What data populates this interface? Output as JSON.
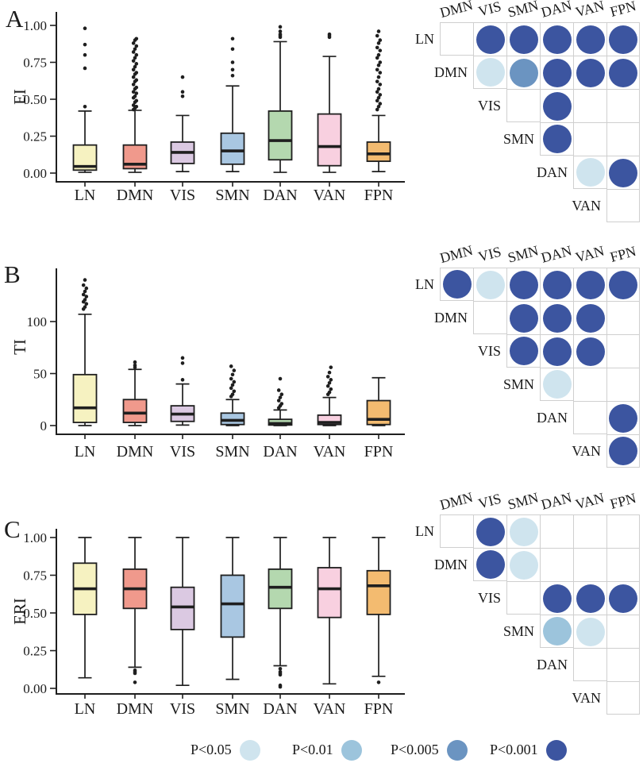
{
  "figure": {
    "networks": [
      "LN",
      "DMN",
      "VIS",
      "SMN",
      "DAN",
      "VAN",
      "FPN"
    ],
    "box_fill_colors": [
      "#f6f2c1",
      "#f0998c",
      "#dbc9e2",
      "#a9c7e2",
      "#b4d8af",
      "#f8d0e0",
      "#f3bb70"
    ],
    "box_stroke_color": "#1f1f1f",
    "grid_line_color": "#cfcfcf",
    "text_color": "#1c1c1c"
  },
  "legend": {
    "items": [
      {
        "label": "P<0.05",
        "color": "#cfe4ee"
      },
      {
        "label": "P<0.01",
        "color": "#9cc4dc"
      },
      {
        "label": "P<0.005",
        "color": "#6b94c1"
      },
      {
        "label": "P<0.001",
        "color": "#3c55a0"
      }
    ]
  },
  "chart_data": [
    {
      "type": "boxplot",
      "panel_label": "A",
      "ylabel": "EI",
      "xlabel": "",
      "categories": [
        "LN",
        "DMN",
        "VIS",
        "SMN",
        "DAN",
        "VAN",
        "FPN"
      ],
      "ylim": [
        0,
        1.09
      ],
      "yticks": [
        {
          "value": 0,
          "label": "0.00"
        },
        {
          "value": 0.25,
          "label": "0.25"
        },
        {
          "value": 0.5,
          "label": "0.50"
        },
        {
          "value": 0.75,
          "label": "0.75"
        },
        {
          "value": 1,
          "label": "1.00"
        }
      ],
      "boxes": [
        {
          "category": "LN",
          "whisker_low": 0.005,
          "q1": 0.02,
          "median": 0.045,
          "q3": 0.19,
          "whisker_high": 0.42,
          "outliers": [
            0.45,
            0.71,
            0.8,
            0.87,
            0.98
          ]
        },
        {
          "category": "DMN",
          "whisker_low": 0.005,
          "q1": 0.03,
          "median": 0.06,
          "q3": 0.19,
          "whisker_high": 0.425,
          "outliers": [
            0.43,
            0.44,
            0.45,
            0.46,
            0.48,
            0.49,
            0.51,
            0.52,
            0.54,
            0.55,
            0.57,
            0.58,
            0.6,
            0.62,
            0.63,
            0.65,
            0.67,
            0.68,
            0.7,
            0.72,
            0.74,
            0.76,
            0.78,
            0.8,
            0.82,
            0.84,
            0.86,
            0.88,
            0.9,
            0.91
          ]
        },
        {
          "category": "VIS",
          "whisker_low": 0.01,
          "q1": 0.065,
          "median": 0.14,
          "q3": 0.21,
          "whisker_high": 0.39,
          "outliers": [
            0.52,
            0.55,
            0.65
          ]
        },
        {
          "category": "SMN",
          "whisker_low": 0.01,
          "q1": 0.06,
          "median": 0.15,
          "q3": 0.27,
          "whisker_high": 0.59,
          "outliers": [
            0.66,
            0.7,
            0.75,
            0.84,
            0.91
          ]
        },
        {
          "category": "DAN",
          "whisker_low": 0.005,
          "q1": 0.09,
          "median": 0.22,
          "q3": 0.42,
          "whisker_high": 0.89,
          "outliers": [
            0.92,
            0.93,
            0.94,
            0.96,
            0.99
          ]
        },
        {
          "category": "VAN",
          "whisker_low": 0.005,
          "q1": 0.05,
          "median": 0.18,
          "q3": 0.4,
          "whisker_high": 0.79,
          "outliers": [
            0.92,
            0.93,
            0.94
          ]
        },
        {
          "category": "FPN",
          "whisker_low": 0.01,
          "q1": 0.08,
          "median": 0.13,
          "q3": 0.21,
          "whisker_high": 0.39,
          "outliers": [
            0.43,
            0.45,
            0.47,
            0.49,
            0.51,
            0.53,
            0.55,
            0.57,
            0.6,
            0.62,
            0.65,
            0.68,
            0.7,
            0.73,
            0.75,
            0.78,
            0.8,
            0.83,
            0.85,
            0.88,
            0.9,
            0.93,
            0.96
          ]
        }
      ],
      "significance_matrix": {
        "columns": [
          "DMN",
          "VIS",
          "SMN",
          "DAN",
          "VAN",
          "FPN"
        ],
        "rows": [
          "LN",
          "DMN",
          "VIS",
          "SMN",
          "DAN",
          "VAN"
        ],
        "dots": [
          {
            "row": "LN",
            "col": "VIS",
            "p": "P<0.001"
          },
          {
            "row": "LN",
            "col": "SMN",
            "p": "P<0.001"
          },
          {
            "row": "LN",
            "col": "DAN",
            "p": "P<0.001"
          },
          {
            "row": "LN",
            "col": "VAN",
            "p": "P<0.001"
          },
          {
            "row": "LN",
            "col": "FPN",
            "p": "P<0.001"
          },
          {
            "row": "DMN",
            "col": "VIS",
            "p": "P<0.05"
          },
          {
            "row": "DMN",
            "col": "SMN",
            "p": "P<0.005"
          },
          {
            "row": "DMN",
            "col": "DAN",
            "p": "P<0.001"
          },
          {
            "row": "DMN",
            "col": "VAN",
            "p": "P<0.001"
          },
          {
            "row": "DMN",
            "col": "FPN",
            "p": "P<0.001"
          },
          {
            "row": "VIS",
            "col": "DAN",
            "p": "P<0.001"
          },
          {
            "row": "SMN",
            "col": "DAN",
            "p": "P<0.001"
          },
          {
            "row": "DAN",
            "col": "VAN",
            "p": "P<0.05"
          },
          {
            "row": "DAN",
            "col": "FPN",
            "p": "P<0.001"
          }
        ]
      }
    },
    {
      "type": "boxplot",
      "panel_label": "B",
      "ylabel": "TI",
      "xlabel": "",
      "categories": [
        "LN",
        "DMN",
        "VIS",
        "SMN",
        "DAN",
        "VAN",
        "FPN"
      ],
      "ylim": [
        0,
        151
      ],
      "yticks": [
        {
          "value": 0,
          "label": "0"
        },
        {
          "value": 50,
          "label": "50"
        },
        {
          "value": 100,
          "label": "100"
        }
      ],
      "boxes": [
        {
          "category": "LN",
          "whisker_low": 0,
          "q1": 3,
          "median": 17,
          "q3": 49,
          "whisker_high": 107,
          "outliers": [
            112,
            114,
            117,
            119,
            121,
            124,
            126,
            129,
            132,
            135,
            140
          ]
        },
        {
          "category": "DMN",
          "whisker_low": 0,
          "q1": 3,
          "median": 12,
          "q3": 25,
          "whisker_high": 54,
          "outliers": [
            56,
            58,
            61
          ]
        },
        {
          "category": "VIS",
          "whisker_low": 0.5,
          "q1": 4,
          "median": 11,
          "q3": 19,
          "whisker_high": 40,
          "outliers": [
            44,
            60,
            65
          ]
        },
        {
          "category": "SMN",
          "whisker_low": 0,
          "q1": 1,
          "median": 5,
          "q3": 12,
          "whisker_high": 25,
          "outliers": [
            28,
            30,
            33,
            36,
            39,
            42,
            45,
            49,
            53,
            57
          ]
        },
        {
          "category": "DAN",
          "whisker_low": 0,
          "q1": 0.5,
          "median": 2,
          "q3": 6,
          "whisker_high": 15,
          "outliers": [
            17,
            19,
            21,
            24,
            27,
            30,
            34,
            45
          ]
        },
        {
          "category": "VAN",
          "whisker_low": 0,
          "q1": 1,
          "median": 3,
          "q3": 10,
          "whisker_high": 27,
          "outliers": [
            30,
            32,
            35,
            38,
            41,
            44,
            47,
            51,
            56
          ]
        },
        {
          "category": "FPN",
          "whisker_low": 0,
          "q1": 1,
          "median": 6,
          "q3": 24,
          "whisker_high": 46,
          "outliers": []
        }
      ],
      "significance_matrix": {
        "columns": [
          "DMN",
          "VIS",
          "SMN",
          "DAN",
          "VAN",
          "FPN"
        ],
        "rows": [
          "LN",
          "DMN",
          "VIS",
          "SMN",
          "DAN",
          "VAN"
        ],
        "dots": [
          {
            "row": "LN",
            "col": "DMN",
            "p": "P<0.001"
          },
          {
            "row": "LN",
            "col": "VIS",
            "p": "P<0.05"
          },
          {
            "row": "LN",
            "col": "SMN",
            "p": "P<0.001"
          },
          {
            "row": "LN",
            "col": "DAN",
            "p": "P<0.001"
          },
          {
            "row": "LN",
            "col": "VAN",
            "p": "P<0.001"
          },
          {
            "row": "LN",
            "col": "FPN",
            "p": "P<0.001"
          },
          {
            "row": "DMN",
            "col": "SMN",
            "p": "P<0.001"
          },
          {
            "row": "DMN",
            "col": "DAN",
            "p": "P<0.001"
          },
          {
            "row": "DMN",
            "col": "VAN",
            "p": "P<0.001"
          },
          {
            "row": "VIS",
            "col": "SMN",
            "p": "P<0.001"
          },
          {
            "row": "VIS",
            "col": "DAN",
            "p": "P<0.001"
          },
          {
            "row": "VIS",
            "col": "VAN",
            "p": "P<0.001"
          },
          {
            "row": "SMN",
            "col": "DAN",
            "p": "P<0.05"
          },
          {
            "row": "DAN",
            "col": "FPN",
            "p": "P<0.001"
          },
          {
            "row": "VAN",
            "col": "FPN",
            "p": "P<0.001"
          }
        ]
      }
    },
    {
      "type": "boxplot",
      "panel_label": "C",
      "ylabel": "ERI",
      "xlabel": "",
      "categories": [
        "LN",
        "DMN",
        "VIS",
        "SMN",
        "DAN",
        "VAN",
        "FPN"
      ],
      "ylim": [
        0,
        1.09
      ],
      "yticks": [
        {
          "value": 0,
          "label": "0.00"
        },
        {
          "value": 0.25,
          "label": "0.25"
        },
        {
          "value": 0.5,
          "label": "0.50"
        },
        {
          "value": 0.75,
          "label": "0.75"
        },
        {
          "value": 1,
          "label": "1.00"
        }
      ],
      "boxes": [
        {
          "category": "LN",
          "whisker_low": 0.07,
          "q1": 0.49,
          "median": 0.66,
          "q3": 0.83,
          "whisker_high": 1,
          "outliers": []
        },
        {
          "category": "DMN",
          "whisker_low": 0.14,
          "q1": 0.53,
          "median": 0.66,
          "q3": 0.79,
          "whisker_high": 1,
          "outliers": [
            0.12,
            0.11,
            0.1,
            0.04
          ]
        },
        {
          "category": "VIS",
          "whisker_low": 0.02,
          "q1": 0.39,
          "median": 0.54,
          "q3": 0.67,
          "whisker_high": 1,
          "outliers": []
        },
        {
          "category": "SMN",
          "whisker_low": 0.06,
          "q1": 0.34,
          "median": 0.56,
          "q3": 0.75,
          "whisker_high": 1,
          "outliers": []
        },
        {
          "category": "DAN",
          "whisker_low": 0.15,
          "q1": 0.53,
          "median": 0.67,
          "q3": 0.79,
          "whisker_high": 1,
          "outliers": [
            0.13,
            0.11,
            0.1,
            0.09,
            0.02,
            0.01
          ]
        },
        {
          "category": "VAN",
          "whisker_low": 0.03,
          "q1": 0.47,
          "median": 0.66,
          "q3": 0.8,
          "whisker_high": 1,
          "outliers": []
        },
        {
          "category": "FPN",
          "whisker_low": 0.08,
          "q1": 0.49,
          "median": 0.68,
          "q3": 0.78,
          "whisker_high": 1,
          "outliers": [
            0.04
          ]
        }
      ],
      "significance_matrix": {
        "columns": [
          "DMN",
          "VIS",
          "SMN",
          "DAN",
          "VAN",
          "FPN"
        ],
        "rows": [
          "LN",
          "DMN",
          "VIS",
          "SMN",
          "DAN",
          "VAN"
        ],
        "dots": [
          {
            "row": "LN",
            "col": "VIS",
            "p": "P<0.001"
          },
          {
            "row": "LN",
            "col": "SMN",
            "p": "P<0.05"
          },
          {
            "row": "DMN",
            "col": "VIS",
            "p": "P<0.001"
          },
          {
            "row": "DMN",
            "col": "SMN",
            "p": "P<0.05"
          },
          {
            "row": "VIS",
            "col": "DAN",
            "p": "P<0.001"
          },
          {
            "row": "VIS",
            "col": "VAN",
            "p": "P<0.001"
          },
          {
            "row": "VIS",
            "col": "FPN",
            "p": "P<0.001"
          },
          {
            "row": "SMN",
            "col": "DAN",
            "p": "P<0.01"
          },
          {
            "row": "SMN",
            "col": "VAN",
            "p": "P<0.05"
          }
        ]
      }
    }
  ]
}
